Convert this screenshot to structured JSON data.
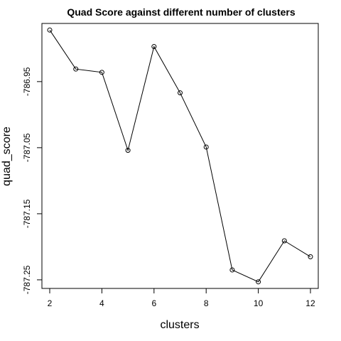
{
  "chart_data": {
    "type": "line",
    "title": "Quad Score against different number of clusters",
    "xlabel": "clusters",
    "ylabel": "quad_score",
    "x": [
      2,
      3,
      4,
      5,
      6,
      7,
      8,
      9,
      10,
      11,
      12
    ],
    "values": [
      -786.872,
      -786.931,
      -786.936,
      -787.054,
      -786.897,
      -786.967,
      -787.049,
      -787.235,
      -787.253,
      -787.191,
      -787.215
    ],
    "xlim": [
      1.7,
      12.3
    ],
    "ylim": [
      -787.263,
      -786.862
    ],
    "xticks": [
      2,
      4,
      6,
      8,
      10,
      12
    ],
    "xtick_labels": [
      "2",
      "4",
      "6",
      "8",
      "10",
      "12"
    ],
    "yticks": [
      -786.95,
      -787.05,
      -787.15,
      -787.25
    ],
    "ytick_labels": [
      "-786.95",
      "-787.05",
      "-787.15",
      "-787.25"
    ],
    "markers": "open-circle",
    "grid": false
  }
}
